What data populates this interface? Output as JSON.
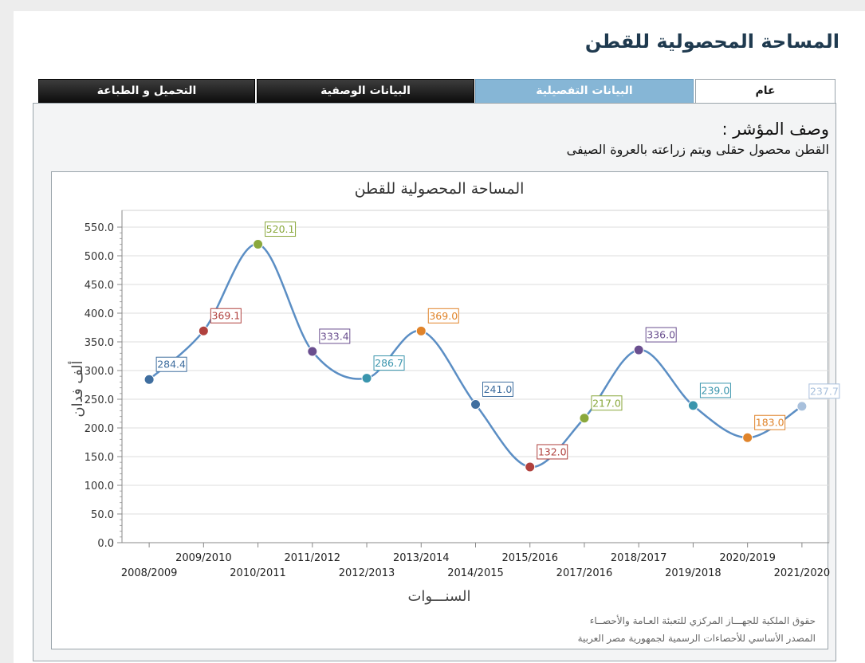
{
  "page": {
    "title": "المساحة المحصولية للقطن"
  },
  "tabs": [
    {
      "label": "التحميل و الطباعة",
      "style": "dark"
    },
    {
      "label": "البيانات الوصفية",
      "style": "dark"
    },
    {
      "label": "البيانات التفصيلية",
      "style": "blue"
    },
    {
      "label": "عام",
      "style": "active"
    }
  ],
  "indicator": {
    "title": "وصف المؤشر :",
    "description": "القطن محصول حقلى ويتم زراعته بالعروة الصيفى"
  },
  "chart_data": {
    "type": "line",
    "title": "المساحة المحصولية للقطن",
    "xlabel": "السنـــوات",
    "ylabel": "ألف فدان",
    "ylim": [
      0,
      550
    ],
    "yticks": [
      "0.0",
      "50.0",
      "100.0",
      "150.0",
      "200.0",
      "250.0",
      "300.0",
      "350.0",
      "400.0",
      "450.0",
      "500.0",
      "550.0"
    ],
    "categories": [
      "2008/2009",
      "2009/2010",
      "2010/2011",
      "2011/2012",
      "2012/2013",
      "2013/2014",
      "2014/2015",
      "2015/2016",
      "2017/2016",
      "2018/2017",
      "2019/2018",
      "2020/2019",
      "2021/2020"
    ],
    "values": [
      284.4,
      369.1,
      520.1,
      333.4,
      286.7,
      369.0,
      241.0,
      132.0,
      217.0,
      336.0,
      239.0,
      183.0,
      237.7
    ],
    "value_labels": [
      "284.4",
      "369.1",
      "520.1",
      "333.4",
      "286.7",
      "369.0",
      "241.0",
      "132.0",
      "217.0",
      "336.0",
      "239.0",
      "183.0",
      "237.7"
    ],
    "point_colors": [
      "#3f6e9f",
      "#b0413e",
      "#8aa83c",
      "#6a4f8f",
      "#3a95ad",
      "#e0842b",
      "#3f6e9f",
      "#b0413e",
      "#8aa83c",
      "#6a4f8f",
      "#3a95ad",
      "#e0842b",
      "#a8c0dc"
    ],
    "line_color": "#5b8ec4",
    "grid": true,
    "legend": "none",
    "footer": [
      "حقوق الملكية للجهـــاز المركزي للتعبئة العـامة والأحصــاء",
      "المصدر الأساسي للأحصاءات الرسمية لجمهورية مصر العربية"
    ]
  }
}
